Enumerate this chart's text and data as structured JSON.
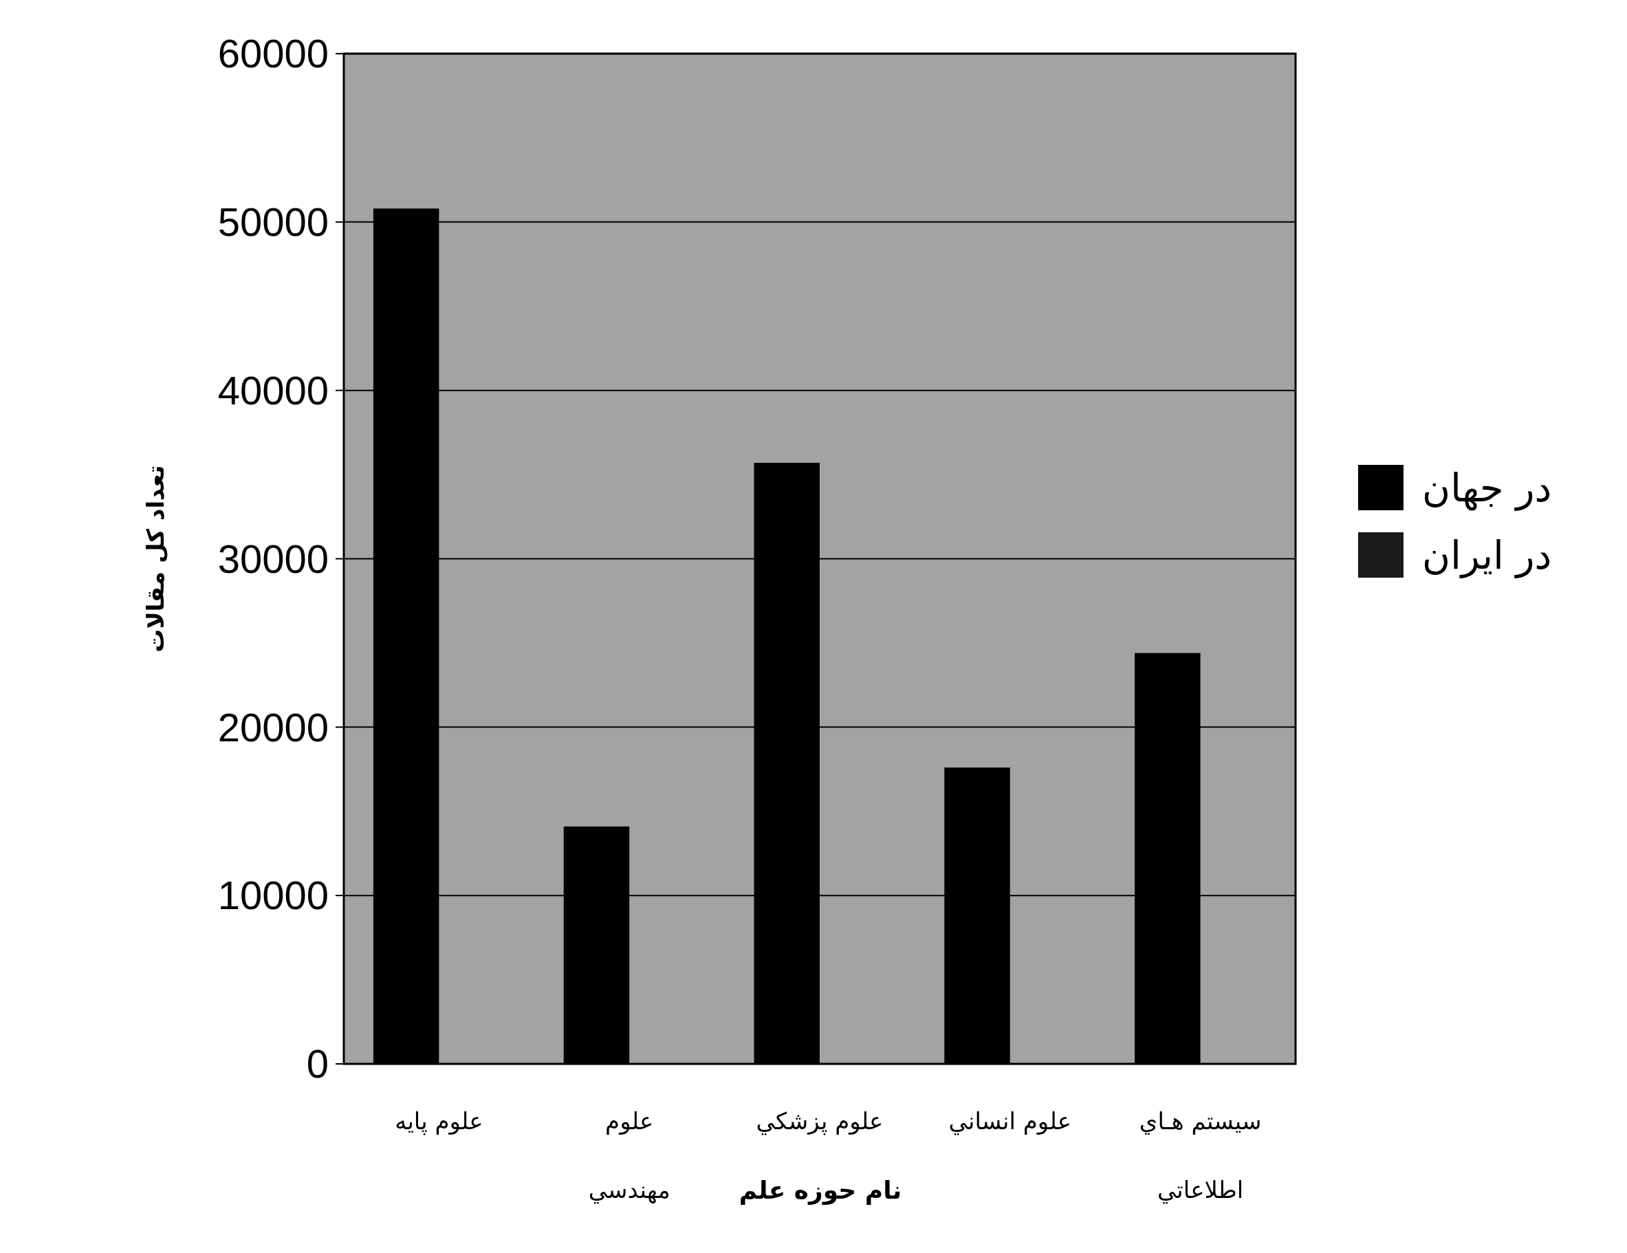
{
  "chart_data": {
    "type": "bar",
    "xlabel": "نام حوزه علم",
    "ylabel": "تعداد كل مقالات",
    "categories": [
      "علوم پايه",
      "علوم\nمهندسي",
      "علوم پزشكي",
      "علوم انساني",
      "سيستم هـاي\nاطلاعاتي"
    ],
    "series": [
      {
        "name": "در جهان",
        "color": "#000000",
        "values": [
          50800,
          14100,
          35700,
          17600,
          24400
        ]
      },
      {
        "name": "در ايران",
        "color": "#1a1a1a",
        "values": [
          null,
          null,
          null,
          null,
          null
        ]
      }
    ],
    "ylim": [
      0,
      60000
    ],
    "yticks": [
      0,
      10000,
      20000,
      30000,
      40000,
      50000,
      60000
    ],
    "grid": "y",
    "legend": "right"
  }
}
